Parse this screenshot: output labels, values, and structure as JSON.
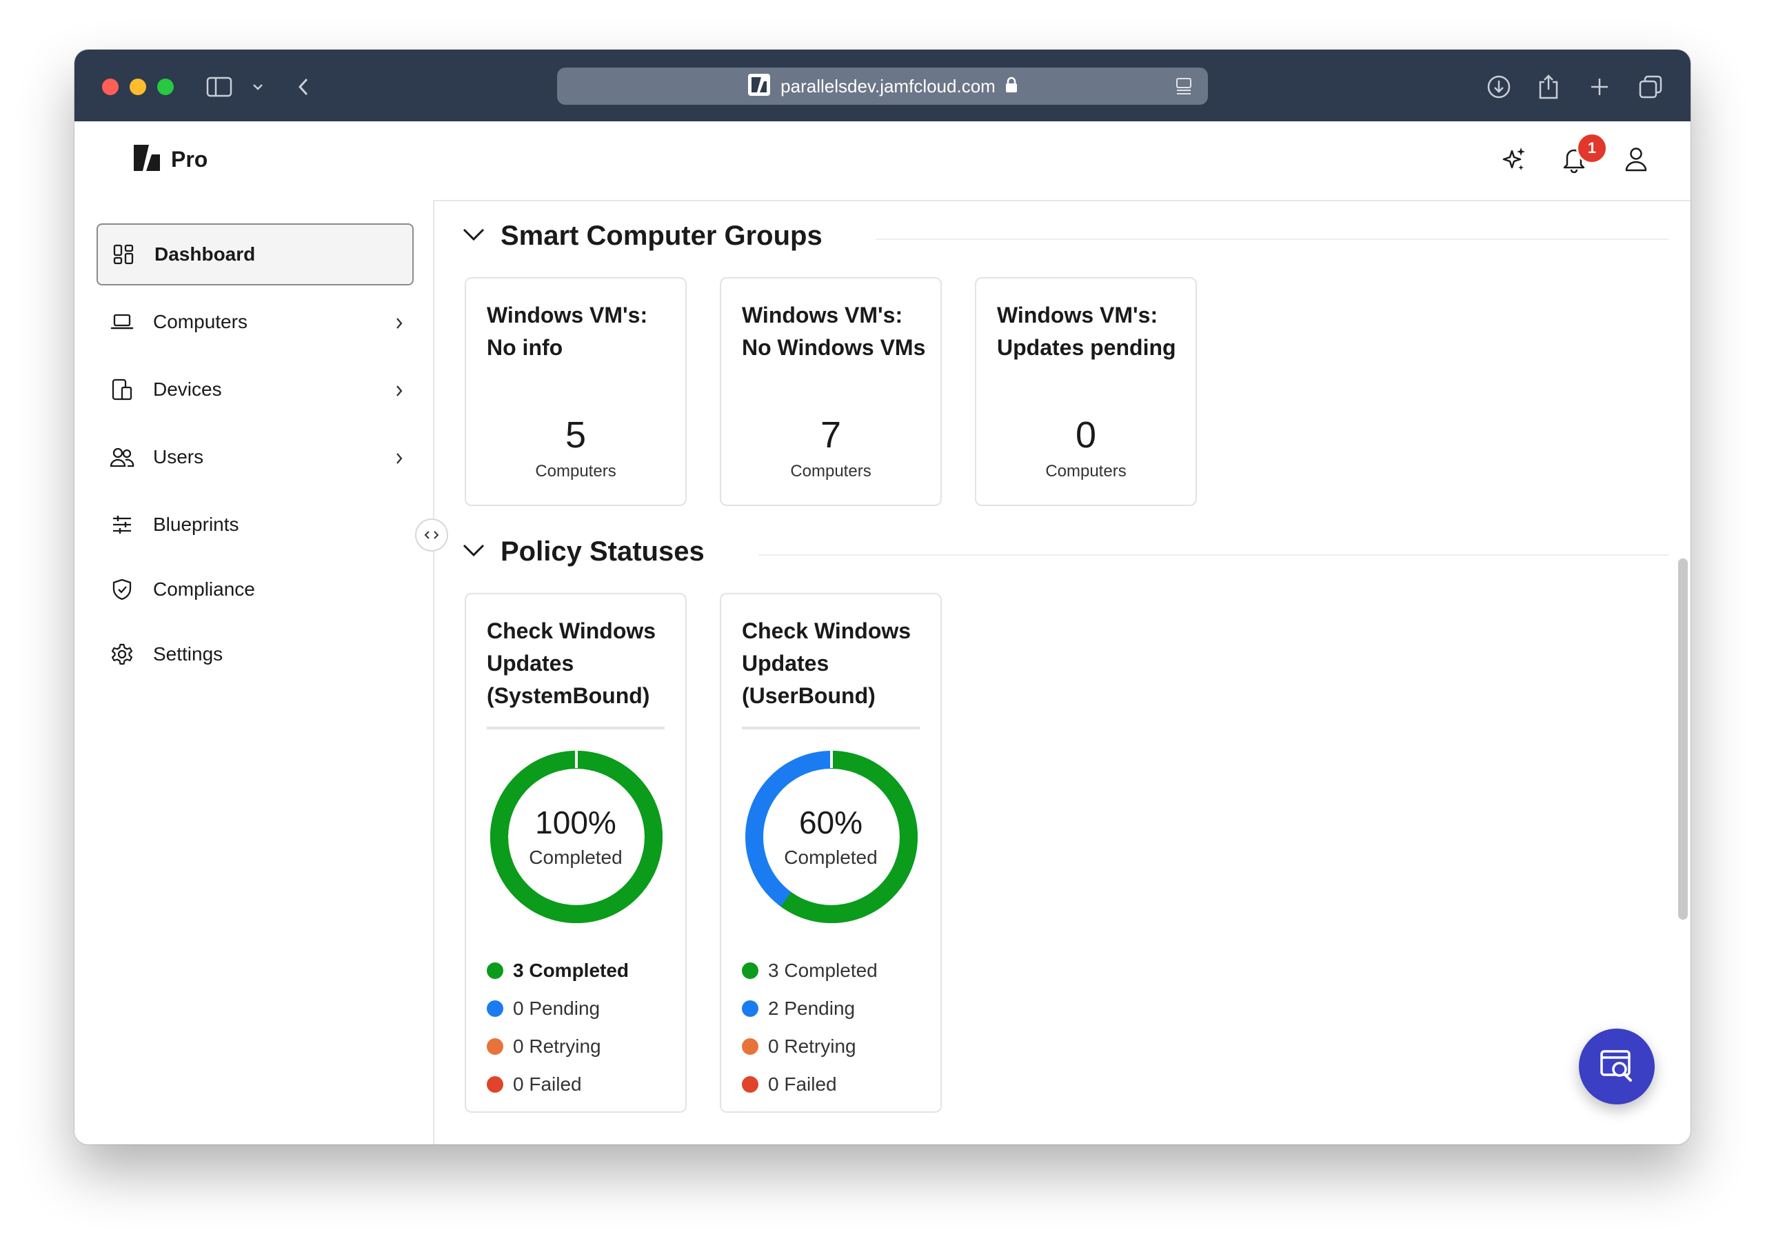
{
  "browser": {
    "url": "parallelsdev.jamfcloud.com"
  },
  "app": {
    "name": "Pro",
    "notifications_count": "1"
  },
  "sidebar": {
    "items": [
      {
        "label": "Dashboard",
        "icon": "dashboard-icon"
      },
      {
        "label": "Computers",
        "icon": "laptop-icon"
      },
      {
        "label": "Devices",
        "icon": "devices-icon"
      },
      {
        "label": "Users",
        "icon": "users-icon"
      },
      {
        "label": "Blueprints",
        "icon": "sliders-icon"
      },
      {
        "label": "Compliance",
        "icon": "shield-check-icon"
      },
      {
        "label": "Settings",
        "icon": "gear-icon"
      }
    ]
  },
  "smart_groups": {
    "title": "Smart Computer Groups",
    "cards": [
      {
        "title": "Windows VM's: No info",
        "count": "5",
        "unit": "Computers"
      },
      {
        "title": "Windows VM's: No Windows VMs",
        "count": "7",
        "unit": "Computers"
      },
      {
        "title": "Windows VM's: Updates pending",
        "count": "0",
        "unit": "Computers"
      }
    ]
  },
  "policy_statuses": {
    "title": "Policy Statuses",
    "cards": [
      {
        "title": "Check Windows Updates (SystemBound)",
        "percent": "100%",
        "percent_label": "Completed",
        "completed_fraction": 1.0,
        "legend": [
          "3 Completed",
          "0 Pending",
          "0 Retrying",
          "0 Failed"
        ]
      },
      {
        "title": "Check Windows Updates (UserBound)",
        "percent": "60%",
        "percent_label": "Completed",
        "completed_fraction": 0.6,
        "legend": [
          "3 Completed",
          "2 Pending",
          "0 Retrying",
          "0 Failed"
        ]
      }
    ]
  },
  "colors": {
    "completed": "#0a9c1a",
    "pending": "#1a7cf0",
    "retrying": "#e8733a",
    "failed": "#e0442a",
    "fab": "#3b3fc4",
    "titlebar": "#2e3a4d"
  }
}
